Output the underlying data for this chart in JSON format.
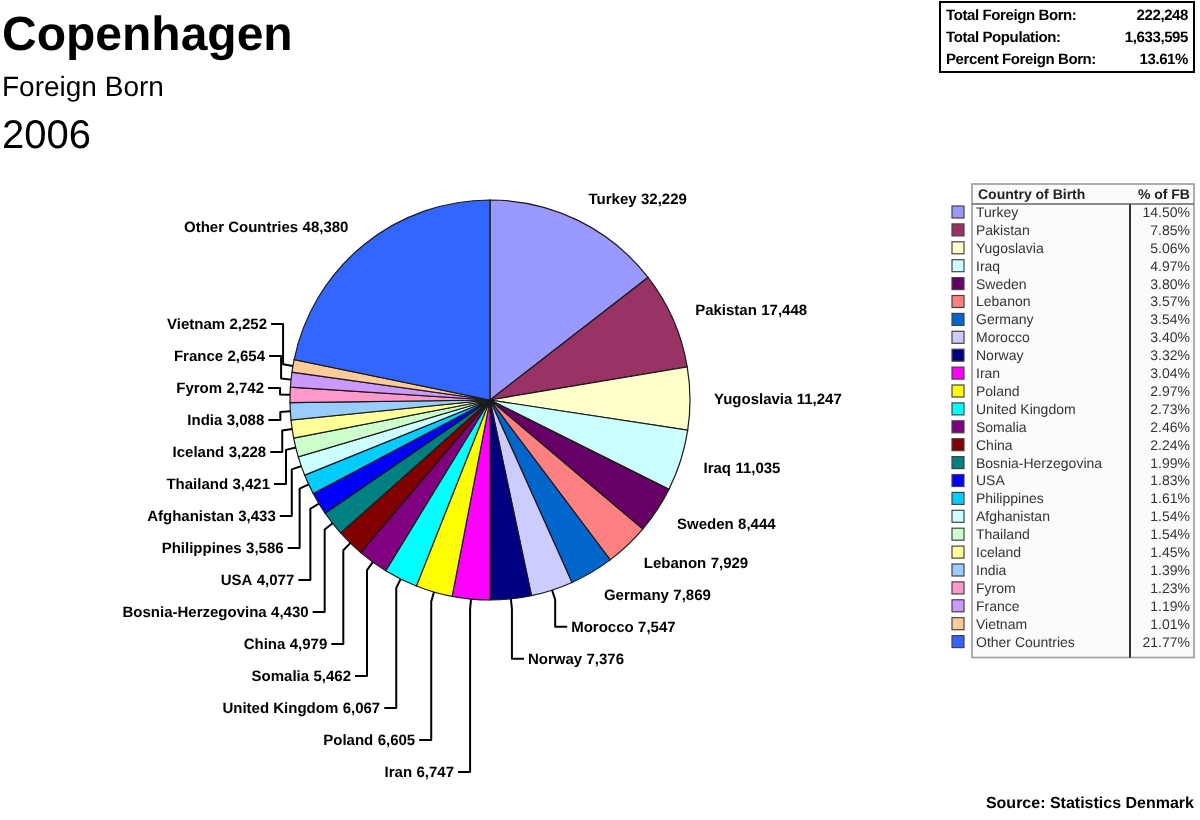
{
  "chart_data": {
    "type": "pie",
    "title": "Copenhagen",
    "subtitle": "Foreign Born\n2006",
    "legend_title": "Country of Birth",
    "legend": "right",
    "categories": [
      "Turkey",
      "Pakistan",
      "Yugoslavia",
      "Iraq",
      "Sweden",
      "Lebanon",
      "Germany",
      "Morocco",
      "Norway",
      "Iran",
      "Poland",
      "United Kingdom",
      "Somalia",
      "China",
      "Bosnia-Herzegovina",
      "USA",
      "Philippines",
      "Afghanistan",
      "Thailand",
      "Iceland",
      "India",
      "Fyrom",
      "France",
      "Vietnam",
      "Other Countries"
    ],
    "values": [
      32229,
      17448,
      11247,
      11035,
      8444,
      7929,
      7869,
      7547,
      7376,
      6747,
      6605,
      6067,
      5462,
      4979,
      4430,
      4077,
      3586,
      3433,
      3421,
      3228,
      3088,
      2742,
      2654,
      2252,
      48380
    ],
    "value_labels": [
      "32,229",
      "17,448",
      "11,247",
      "11,035",
      "8,444",
      "7,929",
      "7,869",
      "7,547",
      "7,376",
      "6,747",
      "6,605",
      "6,067",
      "5,462",
      "4,979",
      "4,430",
      "4,077",
      "3,586",
      "3,433",
      "3,421",
      "3,228",
      "3,088",
      "2,742",
      "2,654",
      "2,252",
      "48,380"
    ],
    "colors": [
      "#9999ff",
      "#993366",
      "#ffffcc",
      "#ccffff",
      "#660066",
      "#ff8080",
      "#0066cc",
      "#ccccff",
      "#000080",
      "#ff00ff",
      "#ffff00",
      "#00ffff",
      "#800080",
      "#800000",
      "#008080",
      "#0000ff",
      "#00ccff",
      "#ccffff",
      "#ccffcc",
      "#ffff99",
      "#99ccff",
      "#ff99cc",
      "#cc99ff",
      "#ffcc99",
      "#3366ff"
    ],
    "annotations": [
      "Total Foreign Born: 222,248",
      "Total Population: 1,633,595",
      "Percent Foreign Born: 13.61%",
      "% of FB",
      "14.50%",
      "7.85%",
      "5.06%",
      "4.97%",
      "3.80%",
      "3.57%",
      "3.54%",
      "3.40%",
      "3.32%",
      "3.04%",
      "2.97%",
      "2.73%",
      "2.46%",
      "2.24%",
      "1.99%",
      "1.83%",
      "1.61%",
      "1.54%",
      "1.54%",
      "1.45%",
      "1.39%",
      "1.23%",
      "1.19%",
      "1.01%",
      "21.77%",
      "Source: Statistics Denmark"
    ]
  }
}
